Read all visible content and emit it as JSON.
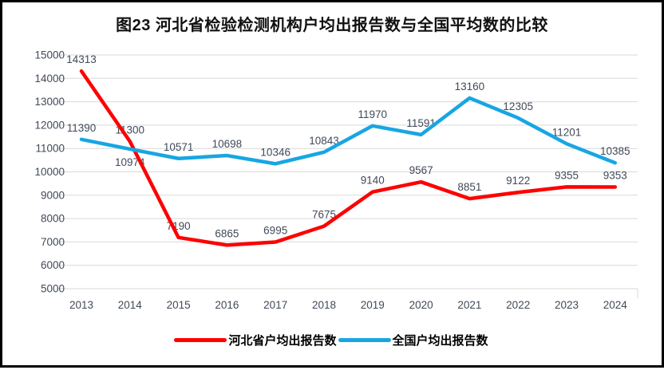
{
  "chart_data": {
    "type": "line",
    "title": "图23  河北省检验检测机构户均出报告数与全国平均数的比较",
    "categories": [
      "2013",
      "2014",
      "2015",
      "2016",
      "2017",
      "2018",
      "2019",
      "2020",
      "2021",
      "2022",
      "2023",
      "2024"
    ],
    "series": [
      {
        "name": "河北省户均出报告数",
        "color": "#fe0000",
        "values": [
          14313,
          11300,
          7190,
          6865,
          6995,
          7675,
          9140,
          9567,
          8851,
          9122,
          9355,
          9353
        ]
      },
      {
        "name": "全国户均出报告数",
        "color": "#17a6e3",
        "values": [
          11390,
          10974,
          10571,
          10698,
          10346,
          10843,
          11970,
          11591,
          13160,
          12305,
          11201,
          10385
        ]
      }
    ],
    "ylim": [
      5000,
      15000
    ],
    "ytick_step": 1000,
    "grid": true,
    "grid_color": "#d9d9d9",
    "axis_text_color": "#404a58",
    "data_label_color": "#404a58",
    "legend_position": "bottom",
    "labels_below": [
      {
        "series": 1,
        "index": 1
      }
    ]
  }
}
